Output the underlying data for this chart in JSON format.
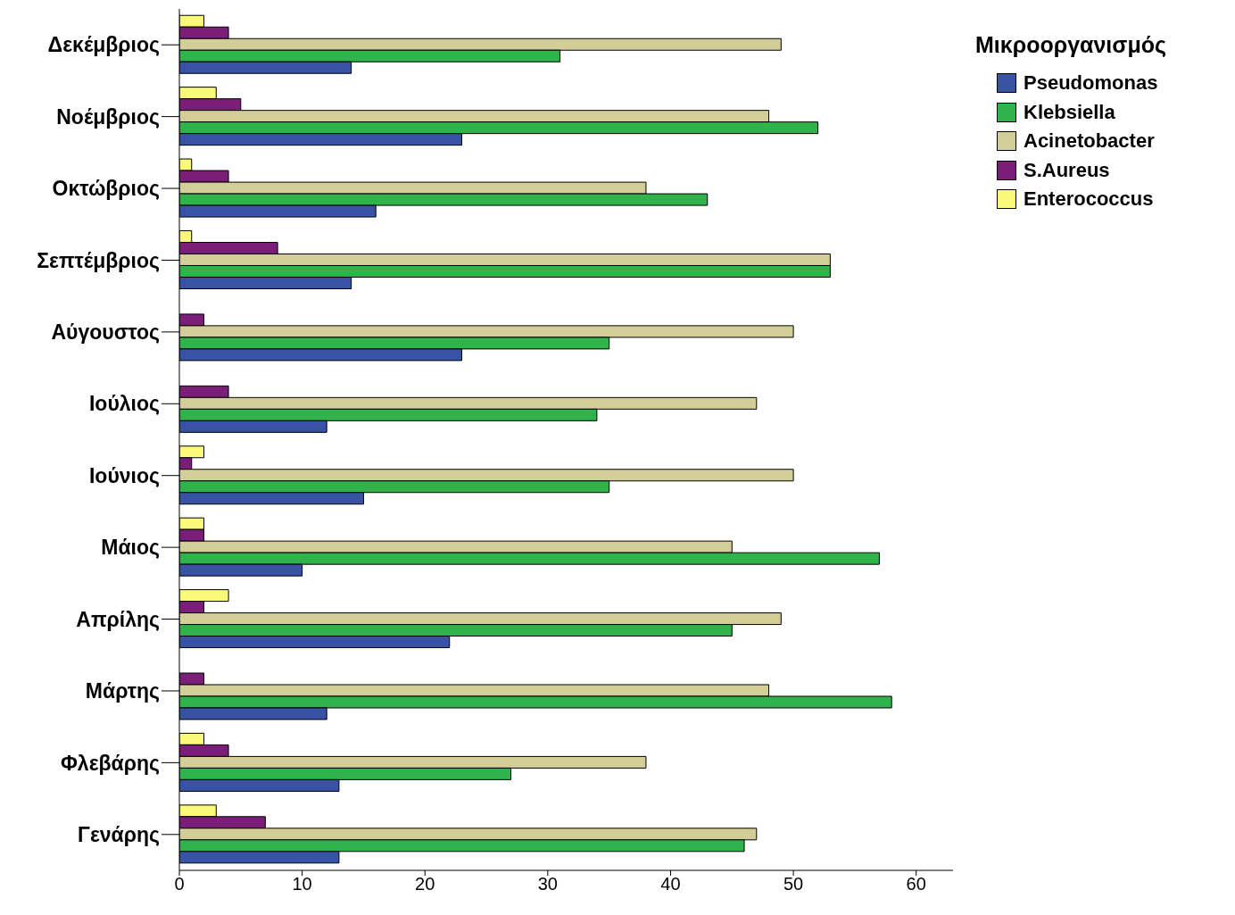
{
  "chart_data": {
    "type": "bar",
    "orientation": "horizontal",
    "legend_title": "Μικροοργανισμός",
    "legend": "top right",
    "grid": false,
    "categories": [
      "Δεκέμβριος",
      "Νοέμβριος",
      "Οκτώβριος",
      "Σεπτέμβριος",
      "Αύγουστος",
      "Ιούλιος",
      "Ιούνιος",
      "Μάιος",
      "Απρίλης",
      "Μάρτης",
      "Φλεβάρης",
      "Γενάρης"
    ],
    "xlim": [
      0,
      63
    ],
    "xticks": [
      0,
      10,
      20,
      30,
      40,
      50,
      60
    ],
    "series": [
      {
        "name": "Pseudomonas",
        "color": "#3953a4",
        "values": [
          14,
          23,
          16,
          14,
          23,
          12,
          15,
          10,
          22,
          12,
          13,
          13
        ]
      },
      {
        "name": "Klebsiella",
        "color": "#2fb34a",
        "values": [
          31,
          52,
          43,
          53,
          35,
          34,
          35,
          57,
          45,
          58,
          27,
          46
        ]
      },
      {
        "name": "Acinetobacter",
        "color": "#d3ce97",
        "values": [
          49,
          48,
          38,
          53,
          50,
          47,
          50,
          45,
          49,
          48,
          38,
          47
        ]
      },
      {
        "name": "S.Aureus",
        "color": "#7b1e7a",
        "values": [
          4,
          5,
          4,
          8,
          2,
          4,
          1,
          2,
          2,
          2,
          4,
          7
        ]
      },
      {
        "name": "Enterococcus",
        "color": "#fbf97a",
        "values": [
          2,
          3,
          1,
          1,
          null,
          null,
          2,
          2,
          4,
          null,
          2,
          3
        ]
      }
    ]
  }
}
